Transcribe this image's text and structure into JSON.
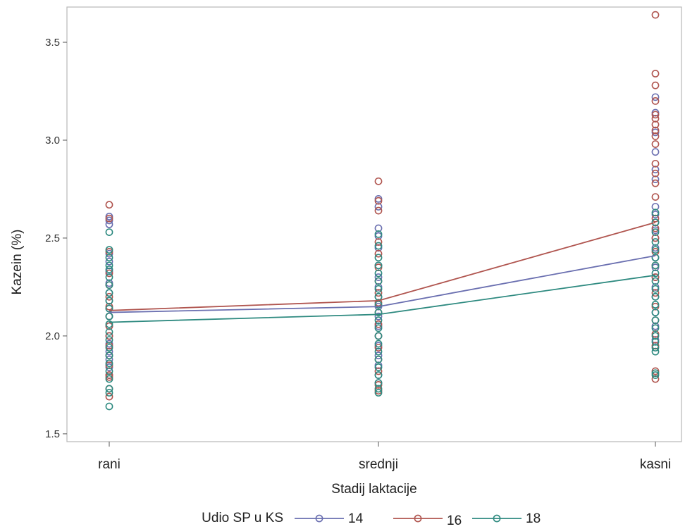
{
  "chart_data": {
    "type": "line",
    "title": "",
    "xlabel": "Stadij laktacije",
    "ylabel": "Kazein (%)",
    "categories": [
      "rani",
      "srednji",
      "kasni"
    ],
    "ylim": [
      1.46,
      3.68
    ],
    "yticks": [
      1.5,
      2.0,
      2.5,
      3.0,
      3.5
    ],
    "ytick_labels": [
      "1.5",
      "2.0",
      "2.5",
      "3.0",
      "3.5"
    ],
    "grid": false,
    "legend": {
      "title": "Udio SP u KS",
      "placement": "bottom"
    },
    "series": [
      {
        "name": "14",
        "color": "#6a6fb0",
        "means": [
          2.12,
          2.15,
          2.41
        ],
        "points": [
          [
            2.61,
            2.59,
            2.57,
            2.42,
            2.38,
            2.33,
            2.27,
            2.22,
            2.18,
            2.14,
            2.1,
            2.05,
            2.0,
            1.96,
            1.92,
            1.88,
            1.84,
            1.8
          ],
          [
            2.7,
            2.66,
            2.55,
            2.51,
            2.45,
            2.36,
            2.3,
            2.25,
            2.2,
            2.15,
            2.1,
            2.05,
            2.0,
            1.95,
            1.9,
            1.85,
            1.8,
            1.76
          ],
          [
            3.22,
            3.14,
            3.04,
            2.94,
            2.85,
            2.8,
            2.66,
            2.62,
            2.58,
            2.54,
            2.5,
            2.45,
            2.4,
            2.35,
            2.3,
            2.25,
            2.2,
            2.12,
            2.05,
            1.98
          ]
        ]
      },
      {
        "name": "16",
        "color": "#b0554f",
        "means": [
          2.13,
          2.18,
          2.58
        ],
        "points": [
          [
            2.67,
            2.6,
            2.43,
            2.32,
            2.26,
            2.2,
            2.15,
            2.1,
            2.05,
            2.0,
            1.95,
            1.9,
            1.85,
            1.8,
            1.79,
            1.73,
            1.69
          ],
          [
            2.79,
            2.69,
            2.64,
            2.48,
            2.42,
            2.35,
            2.28,
            2.22,
            2.17,
            2.12,
            2.06,
            2.0,
            1.94,
            1.88,
            1.82,
            1.75,
            1.72
          ],
          [
            3.64,
            3.34,
            3.28,
            3.2,
            3.13,
            3.11,
            3.08,
            3.05,
            3.02,
            2.98,
            2.88,
            2.83,
            2.78,
            2.71,
            2.6,
            2.55,
            2.5,
            2.43,
            2.36,
            2.3,
            2.22,
            2.15,
            2.08,
            2.01,
            1.95,
            1.82,
            1.78
          ]
        ]
      },
      {
        "name": "18",
        "color": "#2e8a80",
        "means": [
          2.07,
          2.11,
          2.31
        ],
        "points": [
          [
            2.53,
            2.44,
            2.4,
            2.36,
            2.34,
            2.3,
            2.26,
            2.22,
            2.18,
            2.14,
            2.1,
            2.06,
            2.02,
            1.98,
            1.94,
            1.9,
            1.86,
            1.82,
            1.78,
            1.73,
            1.71,
            1.64
          ],
          [
            2.52,
            2.46,
            2.4,
            2.36,
            2.32,
            2.28,
            2.24,
            2.2,
            2.16,
            2.12,
            2.08,
            2.04,
            2.0,
            1.96,
            1.92,
            1.88,
            1.84,
            1.8,
            1.76,
            1.73,
            1.71
          ],
          [
            2.63,
            2.58,
            2.53,
            2.48,
            2.44,
            2.4,
            2.36,
            2.32,
            2.28,
            2.24,
            2.2,
            2.16,
            2.12,
            2.08,
            2.04,
            2.0,
            1.97,
            1.94,
            1.92,
            1.81,
            1.8
          ]
        ]
      }
    ]
  }
}
